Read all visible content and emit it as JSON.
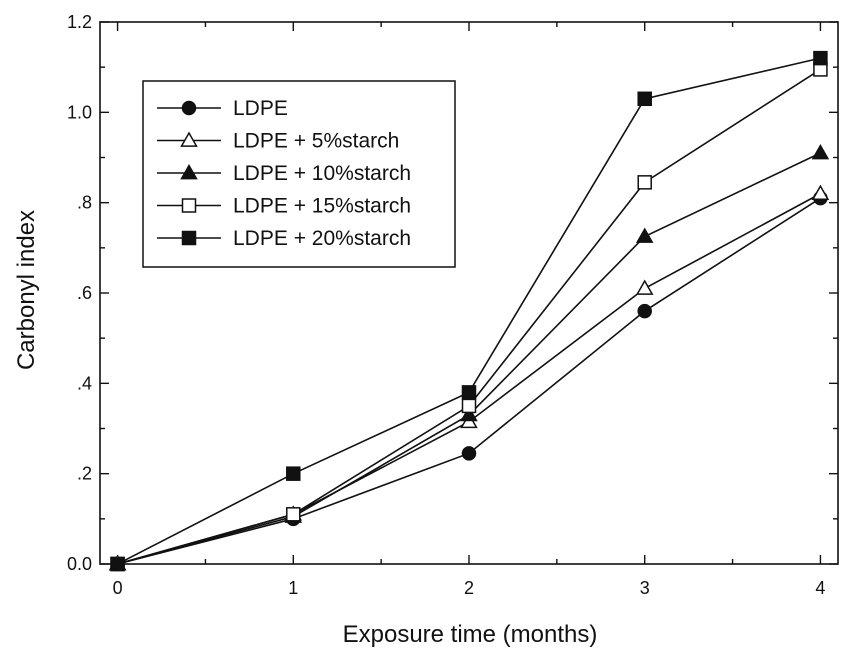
{
  "chart_data": {
    "type": "line",
    "xlabel": "Exposure time (months)",
    "ylabel": "Carbonyl index",
    "x": [
      0,
      1,
      2,
      3,
      4
    ],
    "x_ticks": [
      "0",
      "1",
      "2",
      "3",
      "4"
    ],
    "xlim": [
      -0.1,
      4.1
    ],
    "ylim": [
      0,
      1.2
    ],
    "y_ticks": [
      {
        "value": 0.0,
        "label": "0.0"
      },
      {
        "value": 0.2,
        "label": ".2"
      },
      {
        "value": 0.4,
        "label": ".4"
      },
      {
        "value": 0.6,
        "label": ".6"
      },
      {
        "value": 0.8,
        "label": ".8"
      },
      {
        "value": 1.0,
        "label": "1.0"
      },
      {
        "value": 1.2,
        "label": "1.2"
      }
    ],
    "grid": false,
    "legend_position": "top-left",
    "series": [
      {
        "name": "LDPE",
        "marker": "circle-filled",
        "values": [
          0.0,
          0.1,
          0.245,
          0.56,
          0.81
        ]
      },
      {
        "name": "LDPE + 5%starch",
        "marker": "triangle-open",
        "values": [
          0.0,
          0.11,
          0.315,
          0.61,
          0.82
        ]
      },
      {
        "name": "LDPE + 10%starch",
        "marker": "triangle-filled",
        "values": [
          0.0,
          0.105,
          0.33,
          0.725,
          0.91
        ]
      },
      {
        "name": "LDPE + 15%starch",
        "marker": "square-open",
        "values": [
          0.0,
          0.11,
          0.35,
          0.845,
          1.095
        ]
      },
      {
        "name": "LDPE + 20%starch",
        "marker": "square-filled",
        "values": [
          0.0,
          0.2,
          0.38,
          1.03,
          1.12
        ]
      }
    ],
    "line_color": "#111111"
  }
}
